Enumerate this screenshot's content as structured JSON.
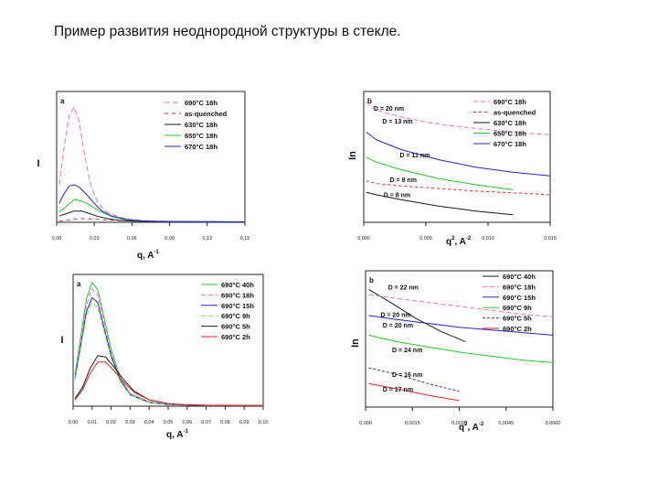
{
  "page": {
    "title": "Пример развития неоднородной структуры в стекле."
  },
  "chart_data": [
    {
      "id": "a-top",
      "type": "line",
      "panel_label": "a",
      "xlabel": "q, A",
      "xlabel_sup": "-1",
      "ylabel": "I",
      "xlim": [
        0,
        0.15
      ],
      "xticks": [
        0.0,
        0.03,
        0.06,
        0.09,
        0.12,
        0.15
      ],
      "xtick_labels": [
        "0,00",
        "0,03",
        "0,06",
        "0,09",
        "0,12",
        "0,15"
      ],
      "ylim": [
        0,
        1
      ],
      "legend_position": "top-right",
      "series": [
        {
          "name": "690°C 18h",
          "color": "#ff66cc",
          "dash": "6,3",
          "x": [
            0.002,
            0.006,
            0.01,
            0.014,
            0.018,
            0.022,
            0.027,
            0.033,
            0.04,
            0.05,
            0.06,
            0.075,
            0.09,
            0.11,
            0.13,
            0.15
          ],
          "y": [
            0.3,
            0.6,
            0.85,
            0.92,
            0.8,
            0.55,
            0.3,
            0.15,
            0.08,
            0.04,
            0.02,
            0.012,
            0.008,
            0.006,
            0.005,
            0.004
          ]
        },
        {
          "name": "as-quenched",
          "color": "#ff2222",
          "dash": "4,4",
          "x": [
            0.002,
            0.01,
            0.02,
            0.03,
            0.045,
            0.06,
            0.08,
            0.1,
            0.15
          ],
          "y": [
            0.01,
            0.02,
            0.03,
            0.025,
            0.015,
            0.01,
            0.006,
            0.005,
            0.004
          ]
        },
        {
          "name": "630°C 18h",
          "color": "#1a1a1a",
          "dash": "",
          "x": [
            0.002,
            0.008,
            0.014,
            0.02,
            0.026,
            0.032,
            0.04,
            0.05,
            0.06,
            0.08,
            0.1,
            0.15
          ],
          "y": [
            0.05,
            0.07,
            0.09,
            0.09,
            0.07,
            0.05,
            0.03,
            0.015,
            0.01,
            0.006,
            0.005,
            0.004
          ]
        },
        {
          "name": "650°C 18h",
          "color": "#22cc22",
          "dash": "",
          "x": [
            0.002,
            0.008,
            0.014,
            0.02,
            0.026,
            0.034,
            0.044,
            0.055,
            0.07,
            0.09,
            0.15
          ],
          "y": [
            0.08,
            0.13,
            0.18,
            0.17,
            0.14,
            0.09,
            0.045,
            0.02,
            0.01,
            0.006,
            0.004
          ]
        },
        {
          "name": "670°C 18h",
          "color": "#2222dd",
          "dash": "",
          "x": [
            0.002,
            0.006,
            0.01,
            0.014,
            0.018,
            0.024,
            0.03,
            0.036,
            0.044,
            0.055,
            0.07,
            0.09,
            0.15
          ],
          "y": [
            0.15,
            0.23,
            0.29,
            0.3,
            0.28,
            0.22,
            0.15,
            0.09,
            0.05,
            0.025,
            0.01,
            0.006,
            0.004
          ]
        }
      ]
    },
    {
      "id": "b-top",
      "type": "line",
      "panel_label": "b",
      "xlabel": "q",
      "xlabel_sup": "2",
      "xlabel_tail": ", A",
      "xlabel_tail_sup": "-2",
      "ylabel": "In",
      "xlim": [
        0,
        0.015
      ],
      "xticks": [
        0.0,
        0.005,
        0.01,
        0.015
      ],
      "xtick_labels": [
        "0,000",
        "0,005",
        "0,010",
        "0,015"
      ],
      "ylim": [
        0,
        1
      ],
      "legend_position": "top-right",
      "annotations": [
        {
          "text": "D = 20 nm",
          "x": 0.0008,
          "y": 0.89
        },
        {
          "text": "D = 13 nm",
          "x": 0.0015,
          "y": 0.79
        },
        {
          "text": "D = 11 nm",
          "x": 0.0029,
          "y": 0.52
        },
        {
          "text": "D = 8 nm",
          "x": 0.0021,
          "y": 0.32
        },
        {
          "text": "D = 8 nm",
          "x": 0.0016,
          "y": 0.2
        }
      ],
      "series": [
        {
          "name": "690°C 18h",
          "color": "#ff66cc",
          "dash": "5,3",
          "x": [
            0.0002,
            0.0008,
            0.0015,
            0.003,
            0.005,
            0.007,
            0.009,
            0.011,
            0.013,
            0.015
          ],
          "y": [
            0.96,
            0.91,
            0.88,
            0.84,
            0.8,
            0.77,
            0.75,
            0.73,
            0.71,
            0.7
          ]
        },
        {
          "name": "as-quenched",
          "color": "#ff2222",
          "dash": "3,3",
          "x": [
            0.0002,
            0.001,
            0.003,
            0.006,
            0.009,
            0.012,
            0.015
          ],
          "y": [
            0.33,
            0.31,
            0.29,
            0.27,
            0.25,
            0.235,
            0.22
          ]
        },
        {
          "name": "630°C 18h",
          "color": "#1a1a1a",
          "dash": "",
          "x": [
            0.0002,
            0.001,
            0.003,
            0.006,
            0.009,
            0.012
          ],
          "y": [
            0.24,
            0.22,
            0.18,
            0.13,
            0.09,
            0.06
          ]
        },
        {
          "name": "650°C 18h",
          "color": "#22cc22",
          "dash": "",
          "x": [
            0.0002,
            0.001,
            0.003,
            0.006,
            0.009,
            0.012
          ],
          "y": [
            0.52,
            0.48,
            0.42,
            0.35,
            0.3,
            0.26
          ]
        },
        {
          "name": "670°C 18h",
          "color": "#2222dd",
          "dash": "",
          "x": [
            0.0002,
            0.001,
            0.003,
            0.006,
            0.009,
            0.012,
            0.015
          ],
          "y": [
            0.72,
            0.66,
            0.58,
            0.5,
            0.44,
            0.4,
            0.37
          ]
        }
      ]
    },
    {
      "id": "a-bottom",
      "type": "line",
      "panel_label": "a",
      "xlabel": "q, A",
      "xlabel_sup": "-1",
      "ylabel": "I",
      "xlim": [
        0,
        0.1
      ],
      "xticks": [
        0.0,
        0.01,
        0.02,
        0.03,
        0.04,
        0.05,
        0.06,
        0.07,
        0.08,
        0.09,
        0.1
      ],
      "xtick_labels": [
        "0,00",
        "0,01",
        "0,02",
        "0,03",
        "0,04",
        "0,05",
        "0,06",
        "0,07",
        "0,08",
        "0,09",
        "0,10"
      ],
      "ylim": [
        0,
        1
      ],
      "legend_position": "top-right",
      "series": [
        {
          "name": "690°C 40h",
          "color": "#22cc22",
          "dash": "",
          "x": [
            0.001,
            0.004,
            0.007,
            0.01,
            0.013,
            0.016,
            0.02,
            0.025,
            0.03,
            0.04,
            0.05,
            0.07,
            0.1
          ],
          "y": [
            0.25,
            0.55,
            0.85,
            0.98,
            0.92,
            0.72,
            0.45,
            0.22,
            0.1,
            0.035,
            0.015,
            0.006,
            0.004
          ]
        },
        {
          "name": "690°C 18h",
          "color": "#ff66cc",
          "dash": "5,3",
          "x": [
            0.001,
            0.004,
            0.007,
            0.01,
            0.013,
            0.016,
            0.02,
            0.025,
            0.03,
            0.04,
            0.05,
            0.07,
            0.1
          ],
          "y": [
            0.24,
            0.52,
            0.8,
            0.93,
            0.88,
            0.69,
            0.43,
            0.21,
            0.1,
            0.035,
            0.015,
            0.006,
            0.004
          ]
        },
        {
          "name": "690°C 15h",
          "color": "#2222dd",
          "dash": "",
          "x": [
            0.001,
            0.004,
            0.007,
            0.01,
            0.013,
            0.016,
            0.02,
            0.025,
            0.03,
            0.04,
            0.05,
            0.07,
            0.1
          ],
          "y": [
            0.22,
            0.48,
            0.75,
            0.86,
            0.82,
            0.64,
            0.4,
            0.2,
            0.09,
            0.03,
            0.013,
            0.006,
            0.004
          ]
        },
        {
          "name": "690°C 9h",
          "color": "#55ee55",
          "dash": "5,3",
          "x": [
            0.001,
            0.004,
            0.007,
            0.01,
            0.013,
            0.016,
            0.02,
            0.025,
            0.03,
            0.04,
            0.05,
            0.07,
            0.1
          ],
          "y": [
            0.21,
            0.46,
            0.72,
            0.82,
            0.78,
            0.61,
            0.38,
            0.19,
            0.09,
            0.03,
            0.013,
            0.006,
            0.004
          ]
        },
        {
          "name": "690°C 5h",
          "color": "#1a1a1a",
          "dash": "",
          "x": [
            0.001,
            0.005,
            0.009,
            0.013,
            0.017,
            0.021,
            0.026,
            0.032,
            0.04,
            0.05,
            0.06,
            0.08,
            0.1
          ],
          "y": [
            0.06,
            0.15,
            0.3,
            0.4,
            0.39,
            0.32,
            0.22,
            0.12,
            0.05,
            0.02,
            0.01,
            0.005,
            0.004
          ]
        },
        {
          "name": "690°C 2h",
          "color": "#ee2222",
          "dash": "",
          "x": [
            0.001,
            0.005,
            0.009,
            0.013,
            0.017,
            0.021,
            0.026,
            0.032,
            0.04,
            0.05,
            0.06,
            0.08,
            0.1
          ],
          "y": [
            0.05,
            0.13,
            0.26,
            0.35,
            0.35,
            0.29,
            0.2,
            0.11,
            0.05,
            0.02,
            0.01,
            0.005,
            0.004
          ]
        }
      ]
    },
    {
      "id": "b-bottom",
      "type": "line",
      "panel_label": "b",
      "xlabel": "q",
      "xlabel_sup": "2",
      "xlabel_tail": ", A",
      "xlabel_tail_sup": "-2",
      "ylabel": "In",
      "xlim": [
        0,
        0.006
      ],
      "xticks": [
        0.0,
        0.0015,
        0.003,
        0.0045,
        0.006
      ],
      "xtick_labels": [
        "0,000",
        "0,0015",
        "0,0030",
        "0,0045",
        "0,0060"
      ],
      "ylim": [
        0,
        1
      ],
      "legend_position": "top-right",
      "annotations": [
        {
          "text": "D = 22 nm",
          "x": 0.00072,
          "y": 0.9
        },
        {
          "text": "D = 20 nm",
          "x": 0.00048,
          "y": 0.69
        },
        {
          "text": "D = 20 nm",
          "x": 0.00055,
          "y": 0.61
        },
        {
          "text": "D = 24 nm",
          "x": 0.00085,
          "y": 0.42
        },
        {
          "text": "D = 16 nm",
          "x": 0.00085,
          "y": 0.23
        },
        {
          "text": "D = 17 nm",
          "x": 0.00055,
          "y": 0.12
        }
      ],
      "series": [
        {
          "name": "690°C 40h",
          "color": "#1a1a1a",
          "dash": "",
          "x": [
            0.0001,
            0.0008,
            0.0016,
            0.0024,
            0.0032
          ],
          "y": [
            0.9,
            0.8,
            0.68,
            0.58,
            0.5
          ]
        },
        {
          "name": "690°C 18h",
          "color": "#ff66cc",
          "dash": "5,3",
          "x": [
            0.0001,
            0.001,
            0.002,
            0.003,
            0.004,
            0.005,
            0.006
          ],
          "y": [
            0.86,
            0.83,
            0.8,
            0.77,
            0.74,
            0.71,
            0.69
          ]
        },
        {
          "name": "690°C 15h",
          "color": "#2222dd",
          "dash": "",
          "x": [
            0.0001,
            0.001,
            0.002,
            0.003,
            0.004,
            0.005,
            0.006
          ],
          "y": [
            0.7,
            0.67,
            0.64,
            0.61,
            0.59,
            0.57,
            0.55
          ]
        },
        {
          "name": "690°C 9h",
          "color": "#22cc22",
          "dash": "",
          "x": [
            0.0001,
            0.001,
            0.002,
            0.003,
            0.004,
            0.005,
            0.006
          ],
          "y": [
            0.55,
            0.5,
            0.46,
            0.42,
            0.39,
            0.36,
            0.34
          ]
        },
        {
          "name": "690°C 5h",
          "color": "#3333aa",
          "dash": "3,2",
          "x": [
            0.0001,
            0.001,
            0.002,
            0.003
          ],
          "y": [
            0.3,
            0.25,
            0.18,
            0.12
          ]
        },
        {
          "name": "690°C 2h",
          "color": "#ee2222",
          "dash": "",
          "x": [
            0.0001,
            0.001,
            0.002,
            0.003
          ],
          "y": [
            0.18,
            0.14,
            0.09,
            0.05
          ]
        }
      ]
    }
  ]
}
